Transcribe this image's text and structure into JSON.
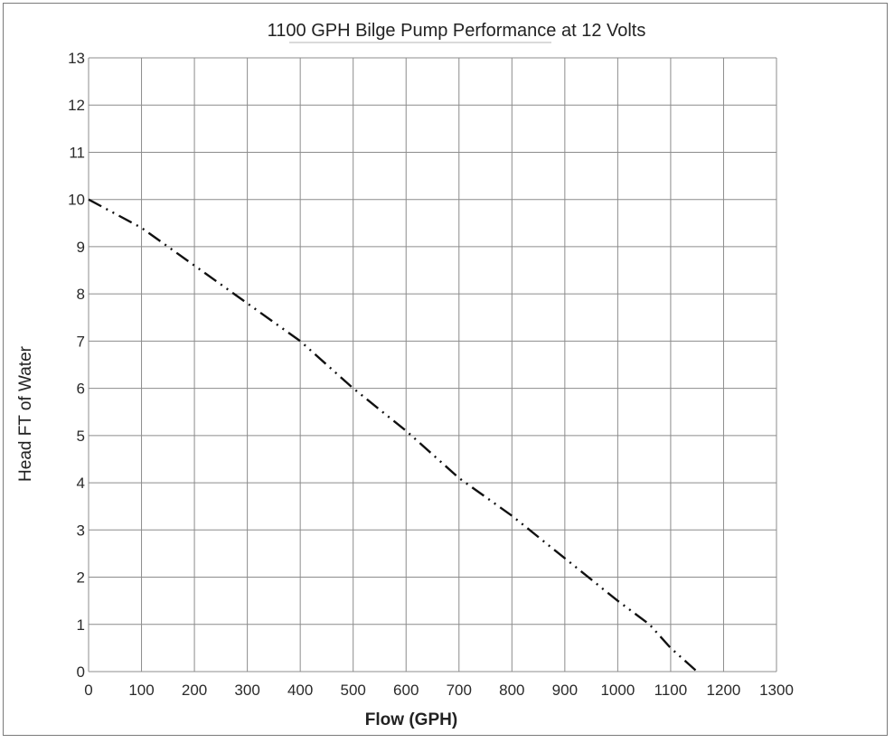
{
  "chart_data": {
    "type": "line",
    "title": "1100 GPH Bilge Pump Performance at 12 Volts",
    "xlabel": "Flow (GPH)",
    "ylabel": "Head FT of Water",
    "xlim": [
      0,
      1300
    ],
    "ylim": [
      0,
      13
    ],
    "xticks": [
      "0",
      "100",
      "200",
      "300",
      "400",
      "500",
      "600",
      "700",
      "800",
      "900",
      "1000",
      "1100",
      "1200",
      "1300"
    ],
    "yticks": [
      "0",
      "1",
      "2",
      "3",
      "4",
      "5",
      "6",
      "7",
      "8",
      "9",
      "10",
      "11",
      "12",
      "13"
    ],
    "grid": true,
    "line_style": "dash-dot-dot",
    "line_color": "#111111",
    "series": [
      {
        "x": [
          0,
          100,
          200,
          300,
          400,
          500,
          600,
          700,
          800,
          900,
          1000,
          1060,
          1100,
          1150
        ],
        "y": [
          10,
          9.4,
          8.6,
          7.8,
          7.0,
          6.0,
          5.1,
          4.1,
          3.3,
          2.4,
          1.5,
          1.0,
          0.5,
          0
        ]
      }
    ]
  }
}
